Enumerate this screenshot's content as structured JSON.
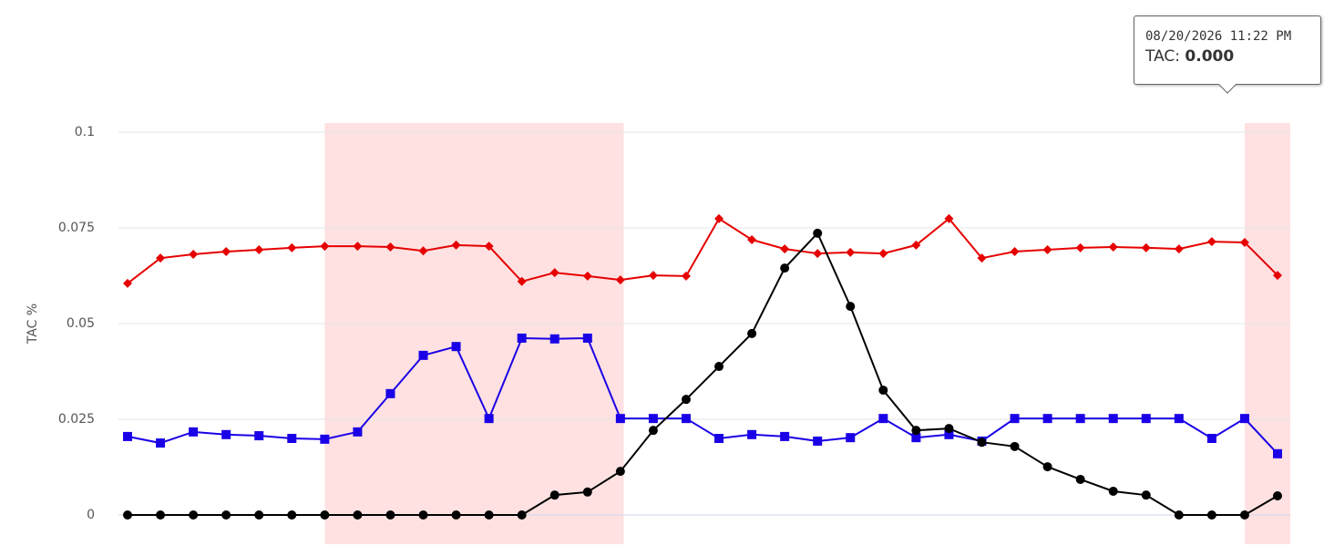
{
  "chart_data": {
    "type": "line",
    "ylabel": "TAC %",
    "categories": [
      null,
      null,
      null,
      null,
      null,
      null,
      null,
      null,
      null,
      null,
      null,
      null,
      null,
      null,
      null,
      null,
      null,
      null,
      null,
      null,
      null,
      null,
      null,
      null,
      null,
      null,
      null,
      null,
      null,
      null,
      null,
      null,
      null,
      null,
      null,
      null
    ],
    "ylim": [
      0,
      0.1
    ],
    "yticks": [
      0,
      0.025,
      0.05,
      0.075,
      0.1
    ],
    "grid": true,
    "series": [
      {
        "name": null,
        "color": "#e60000",
        "marker": "diamond",
        "values": [
          0.0605,
          0.0671,
          0.0681,
          0.0688,
          0.0693,
          0.0698,
          0.0702,
          0.0702,
          0.07,
          0.069,
          0.0705,
          0.0702,
          0.061,
          0.0633,
          0.0624,
          0.0614,
          0.0626,
          0.0624,
          0.0774,
          0.0719,
          0.0695,
          0.0683,
          0.0686,
          0.0683,
          0.0705,
          0.0774,
          0.0671,
          0.0688,
          0.0693,
          0.0698,
          0.07,
          0.0698,
          0.0695,
          0.0714,
          0.0712,
          0.0626
        ]
      },
      {
        "name": null,
        "color": "#1a00e6",
        "marker": "square",
        "values": [
          0.0205,
          0.0188,
          0.0217,
          0.021,
          0.0207,
          0.02,
          0.0198,
          0.0217,
          0.0317,
          0.0417,
          0.044,
          0.0252,
          0.0462,
          0.046,
          0.0462,
          0.0252,
          0.0252,
          0.0252,
          0.02,
          0.021,
          0.0205,
          0.0193,
          0.0202,
          0.0252,
          0.0202,
          0.021,
          0.0193,
          0.0252,
          0.0252,
          0.0252,
          0.0252,
          0.0252,
          0.0252,
          0.02,
          0.0252,
          0.016
        ]
      },
      {
        "name": null,
        "color": "#000000",
        "marker": "circle",
        "values": [
          0,
          0,
          0,
          0,
          0,
          0,
          0,
          0,
          0,
          0,
          0,
          0,
          0,
          0.0052,
          0.006,
          0.0114,
          0.0221,
          0.0302,
          0.0388,
          0.0474,
          0.0645,
          0.0736,
          0.0545,
          0.0326,
          0.0221,
          0.0226,
          0.019,
          0.0179,
          0.0126,
          0.0093,
          0.0062,
          0.0052,
          0,
          0,
          0,
          0.005
        ]
      }
    ]
  },
  "tooltip": {
    "date": "08/20/2026 11:22 PM",
    "label": "TAC:",
    "value": "0.000"
  }
}
